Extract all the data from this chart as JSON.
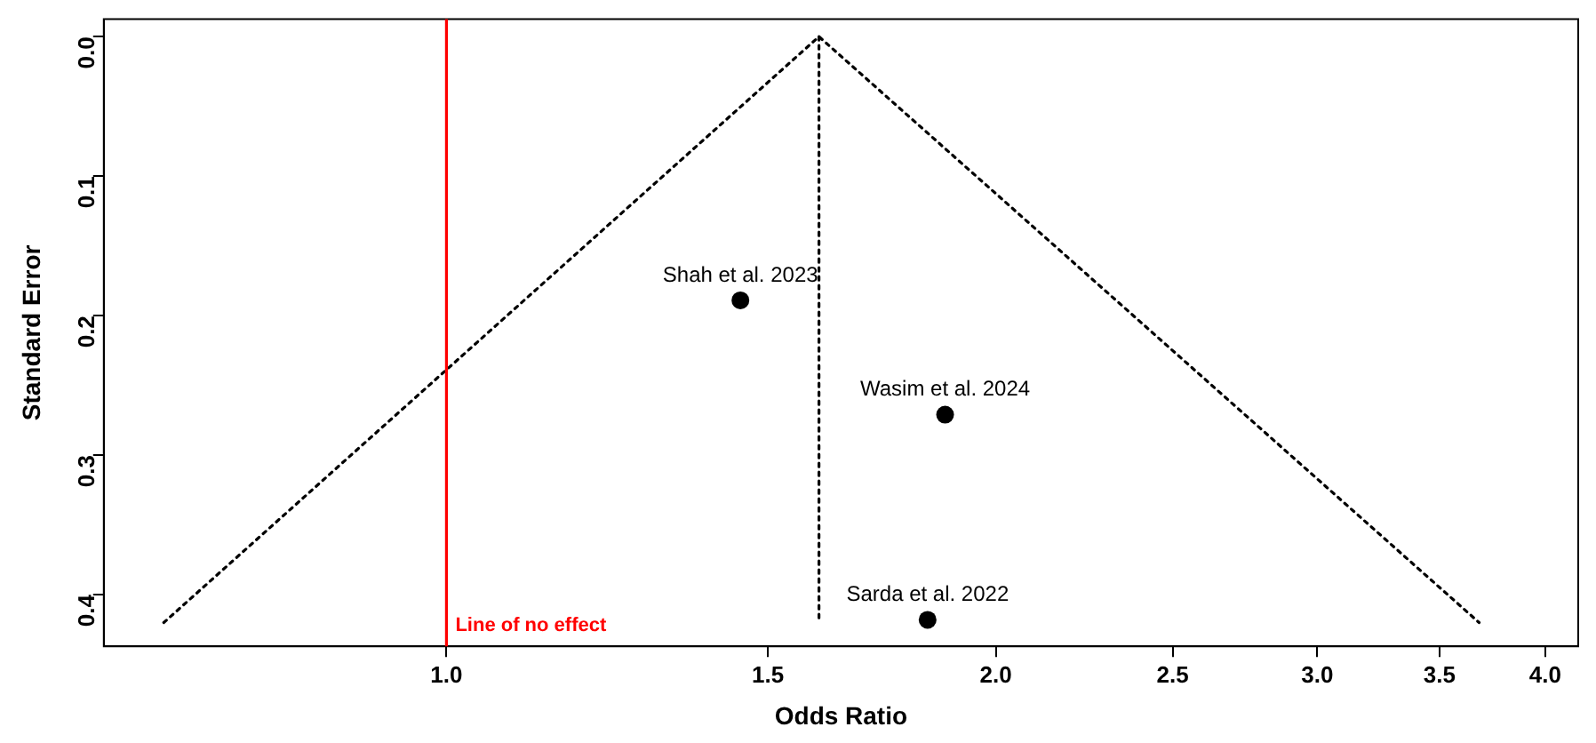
{
  "chart_data": {
    "type": "scatter",
    "xlabel": "Odds Ratio",
    "ylabel": "Standard Error",
    "log": "x",
    "xlim": [
      0.649,
      4.17
    ],
    "xticks": [
      {
        "value": 1,
        "label": "1.0"
      },
      1.5,
      {
        "value": 2,
        "label": "2.0"
      },
      2.5,
      {
        "value": 3,
        "label": "3.0"
      },
      3.5,
      {
        "value": 4,
        "label": "4.0"
      }
    ],
    "ylim": [
      0.437,
      -0.0125
    ],
    "yticks": [
      {
        "value": 0,
        "label": "0.0"
      },
      0.1,
      0.2,
      0.3,
      0.4
    ],
    "grid": false,
    "legend": false,
    "series": [
      {
        "type": "line",
        "color": "#000000",
        "line_style": "dotted",
        "marker": "none",
        "x": [
          0.7,
          1.6,
          3.68
        ],
        "values": [
          0.42,
          0,
          0.42
        ]
      },
      {
        "type": "line",
        "color": "#000000",
        "line_style": "dotted",
        "marker": "none",
        "x": [
          1.6,
          1.6
        ],
        "values": [
          0,
          0.42
        ]
      },
      {
        "type": "scatter",
        "color": "#000000",
        "marker": "circle",
        "x": [
          1.449,
          1.876,
          1.835
        ],
        "values": [
          0.189,
          0.271,
          0.418
        ]
      }
    ],
    "ref_lines": [
      {
        "axis": "x",
        "value": 1,
        "label": "Line of no effect",
        "color": "#ff0000",
        "line_style": "solid"
      }
    ],
    "annotations": [
      {
        "text": "Shah et al. 2023",
        "x": 1.449,
        "y": 0.189
      },
      {
        "text": "Wasim et al. 2024",
        "x": 1.876,
        "y": 0.271
      },
      {
        "text": "Sarda et al. 2022",
        "x": 1.835,
        "y": 0.418
      }
    ]
  }
}
